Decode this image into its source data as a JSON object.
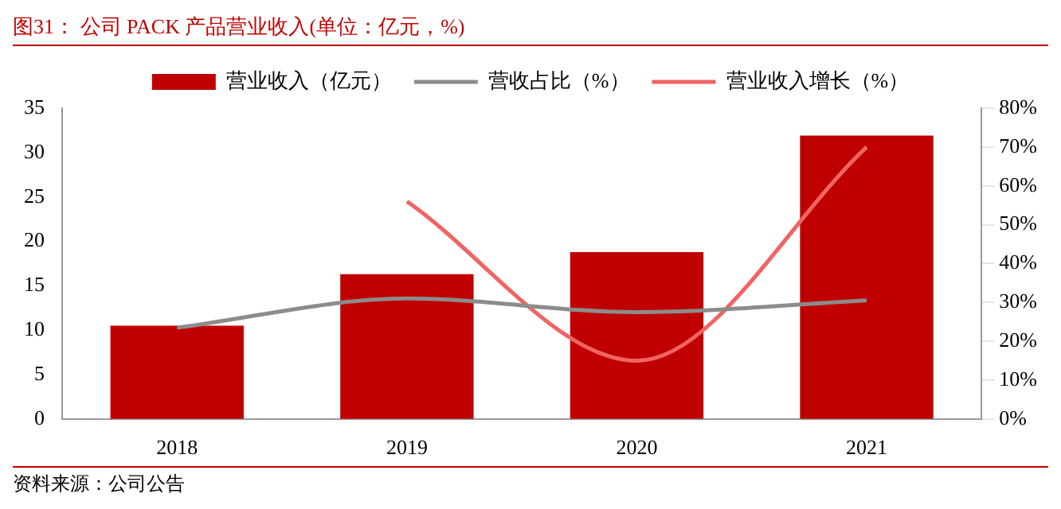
{
  "chart_data": {
    "type": "bar",
    "title": "图31：  公司 PACK 产品营业收入(单位：亿元，%)",
    "categories": [
      "2018",
      "2019",
      "2020",
      "2021"
    ],
    "series": [
      {
        "name": "营业收入（亿元）",
        "color": "#c00000",
        "values": [
          10.5,
          16.3,
          18.8,
          31.9
        ]
      },
      {
        "name": "营收占比（%）",
        "type": "line",
        "color": "#8c8c8c",
        "axis": "y2",
        "values": [
          23.5,
          31,
          27.5,
          30.5
        ]
      },
      {
        "name": "营业收入增长（%）",
        "type": "line",
        "color": "#f06464",
        "axis": "y2",
        "values": [
          null,
          56,
          15,
          70
        ]
      }
    ],
    "ylim": [
      0,
      35
    ],
    "yticks": [
      0,
      5,
      10,
      15,
      20,
      25,
      30,
      35
    ],
    "y2lim": [
      0,
      80
    ],
    "y2ticks": [
      {
        "value": 0,
        "label": "0%"
      },
      {
        "value": 10,
        "label": "10%"
      },
      {
        "value": 20,
        "label": "20%"
      },
      {
        "value": 30,
        "label": "30%"
      },
      {
        "value": 40,
        "label": "40%"
      },
      {
        "value": 50,
        "label": "50%"
      },
      {
        "value": 60,
        "label": "60%"
      },
      {
        "value": 70,
        "label": "70%"
      },
      {
        "value": 80,
        "label": "80%"
      }
    ],
    "grid": false,
    "legend": "top",
    "marker": "none",
    "annotations": [
      "资料来源：公司公告"
    ]
  }
}
